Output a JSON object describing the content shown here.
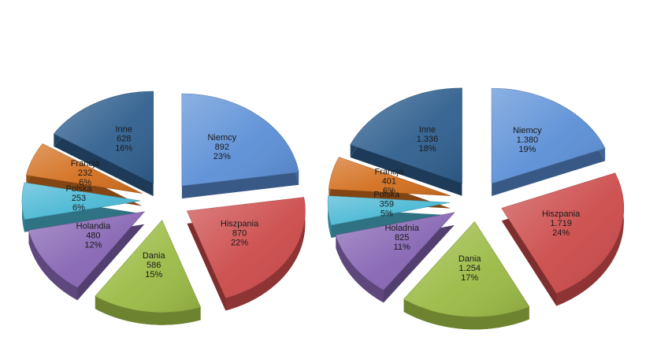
{
  "colors": {
    "Niemcy": "#5b8fd6",
    "Hiszpania": "#cc4a4a",
    "Dania": "#9bbb45",
    "Holandia": "#8665b3",
    "Polska": "#4ab8d4",
    "Francja": "#d36f1e",
    "Inne": "#2f5f8e"
  },
  "chart_data": [
    {
      "type": "pie",
      "title": "",
      "slices": [
        {
          "category": "Niemcy",
          "label": "Niemcy",
          "value_text": "892",
          "percent_text": "23%",
          "value": 892
        },
        {
          "category": "Hiszpania",
          "label": "Hiszpania",
          "value_text": "870",
          "percent_text": "22%",
          "value": 870
        },
        {
          "category": "Dania",
          "label": "Dania",
          "value_text": "586",
          "percent_text": "15%",
          "value": 586
        },
        {
          "category": "Holandia",
          "label": "Holandia",
          "value_text": "480",
          "percent_text": "12%",
          "value": 480
        },
        {
          "category": "Polska",
          "label": "Polska",
          "value_text": "253",
          "percent_text": "6%",
          "value": 253
        },
        {
          "category": "Francja",
          "label": "Francja",
          "value_text": "232",
          "percent_text": "6%",
          "value": 232
        },
        {
          "category": "Inne",
          "label": "Inne",
          "value_text": "628",
          "percent_text": "16%",
          "value": 628
        }
      ]
    },
    {
      "type": "pie",
      "title": "",
      "slices": [
        {
          "category": "Niemcy",
          "label": "Niemcy",
          "value_text": "1.380",
          "percent_text": "19%",
          "value": 1380
        },
        {
          "category": "Hiszpania",
          "label": "Hiszpania",
          "value_text": "1.719",
          "percent_text": "24%",
          "value": 1719
        },
        {
          "category": "Dania",
          "label": "Dania",
          "value_text": "1.254",
          "percent_text": "17%",
          "value": 1254
        },
        {
          "category": "Holandia",
          "label": "Holadnia",
          "value_text": "825",
          "percent_text": "11%",
          "value": 825
        },
        {
          "category": "Polska",
          "label": "Polska",
          "value_text": "359",
          "percent_text": "5%",
          "value": 359
        },
        {
          "category": "Francja",
          "label": "Francja",
          "value_text": "401",
          "percent_text": "6%",
          "value": 401
        },
        {
          "category": "Inne",
          "label": "Inne",
          "value_text": "1.336",
          "percent_text": "18%",
          "value": 1336
        }
      ]
    }
  ]
}
